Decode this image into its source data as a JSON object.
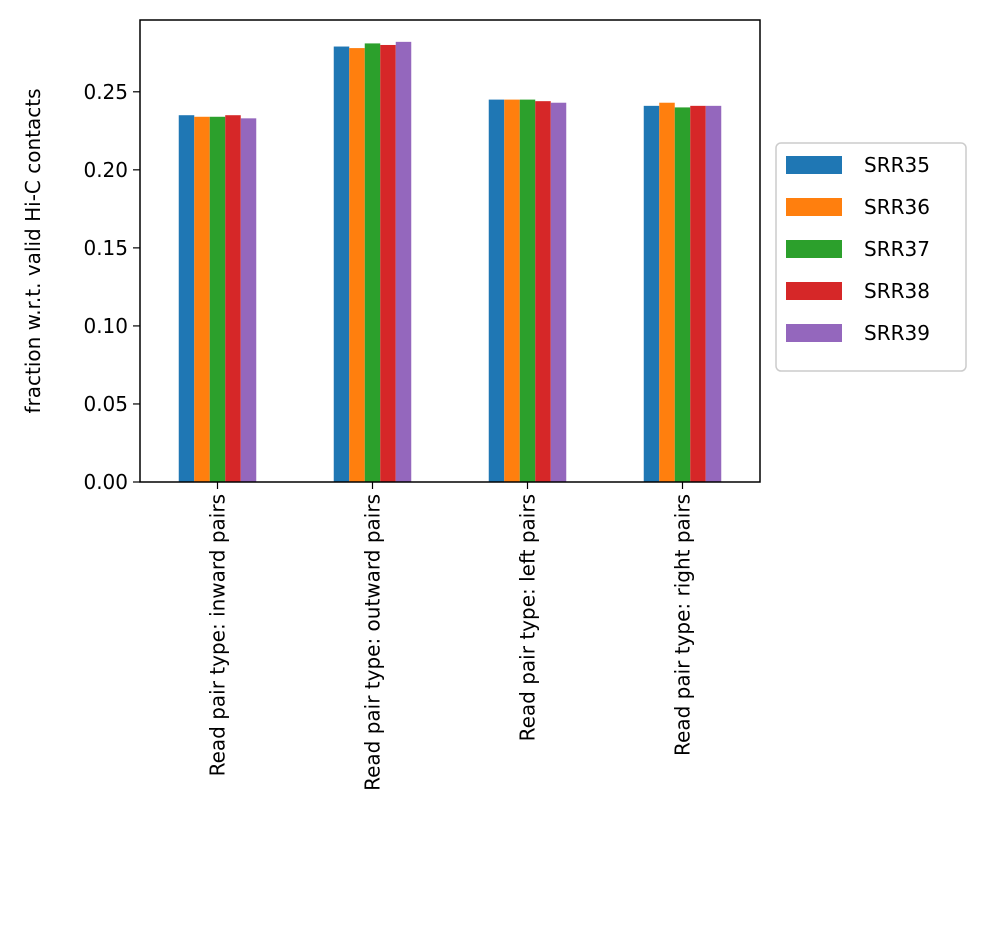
{
  "chart_data": {
    "type": "bar",
    "title": "",
    "xlabel": "",
    "ylabel": "fraction w.r.t. valid Hi-C contacts",
    "ylim": [
      0,
      0.296
    ],
    "yticks": [
      0.0,
      0.05,
      0.1,
      0.15,
      0.2,
      0.25
    ],
    "ytick_labels": [
      "0.00",
      "0.05",
      "0.10",
      "0.15",
      "0.20",
      "0.25"
    ],
    "categories": [
      "Read pair type: inward pairs",
      "Read pair type: outward pairs",
      "Read pair type: left pairs",
      "Read pair type: right pairs"
    ],
    "series": [
      {
        "name": "SRR35",
        "color": "#1f77b4",
        "values": [
          0.235,
          0.279,
          0.245,
          0.241
        ]
      },
      {
        "name": "SRR36",
        "color": "#ff7f0e",
        "values": [
          0.234,
          0.278,
          0.245,
          0.243
        ]
      },
      {
        "name": "SRR37",
        "color": "#2ca02c",
        "values": [
          0.234,
          0.281,
          0.245,
          0.24
        ]
      },
      {
        "name": "SRR38",
        "color": "#d62728",
        "values": [
          0.235,
          0.28,
          0.244,
          0.241
        ]
      },
      {
        "name": "SRR39",
        "color": "#9467bd",
        "values": [
          0.233,
          0.282,
          0.243,
          0.241
        ]
      }
    ],
    "legend": {
      "placement": "right-outside"
    }
  }
}
